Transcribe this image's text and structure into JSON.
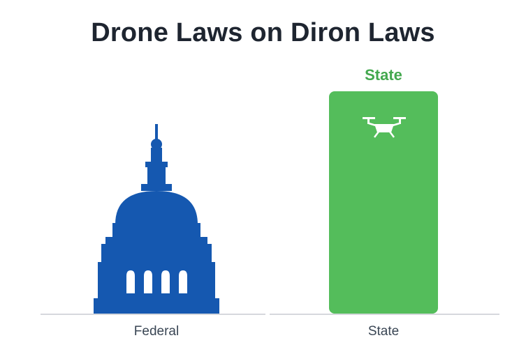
{
  "title": "Drone Laws on Diron Laws",
  "chart_data": {
    "type": "bar",
    "categories": [
      "Federal",
      "State"
    ],
    "series": [
      {
        "values": [
          0,
          1
        ]
      }
    ],
    "bar_top_labels": [
      "",
      "State"
    ],
    "icons": [
      "capitol-building-icon",
      "drone-icon"
    ],
    "colors": {
      "federal": "#1558b0",
      "state": "#54bd5b",
      "axis": "#c8ccd2",
      "label": "#3a4654"
    },
    "xlabel": "",
    "ylabel": "",
    "grid": false
  }
}
